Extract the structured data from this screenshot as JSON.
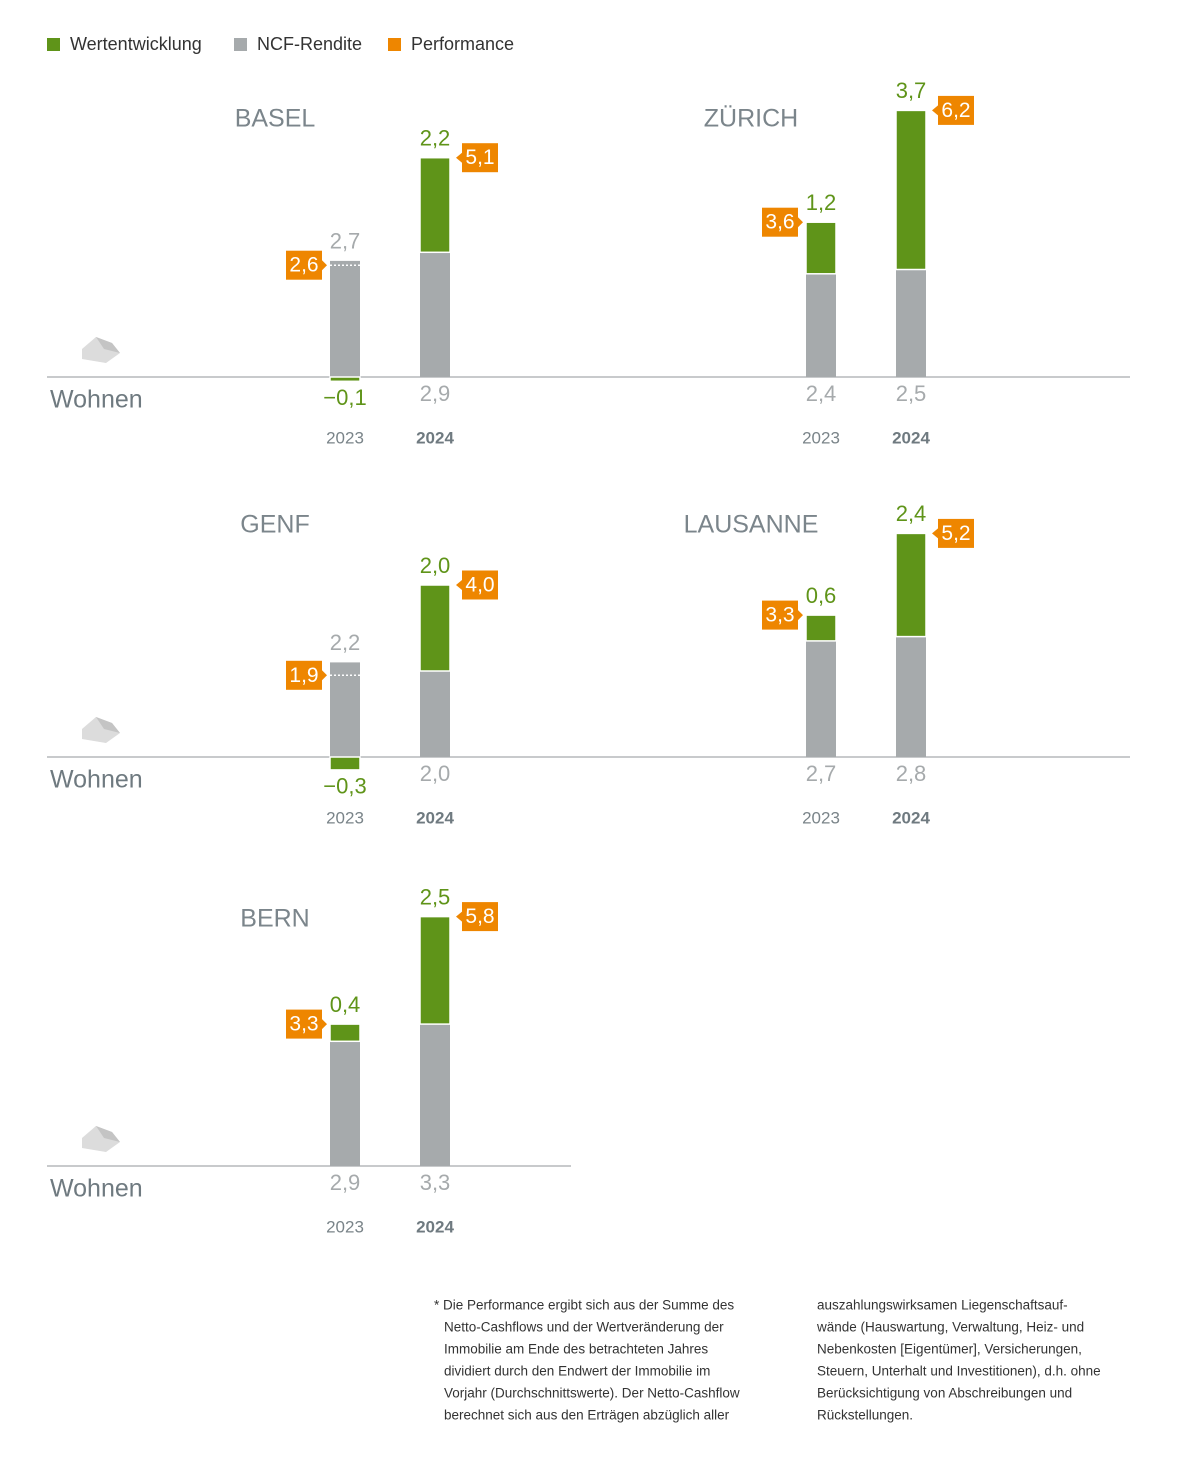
{
  "chart_data": {
    "type": "bar",
    "stacked": true,
    "series": [
      {
        "name": "Wertentwicklung",
        "color": "#5f9419"
      },
      {
        "name": "NCF-Rendite",
        "color": "#a6aaac"
      },
      {
        "name": "Performance",
        "color": "#ee8600"
      }
    ],
    "panels": [
      {
        "title": "BASEL",
        "row_label": "Wohnen",
        "categories": [
          "2023",
          "2024"
        ],
        "series": [
          {
            "values": [
              -0.1,
              2.2
            ],
            "value_labels": [
              "−0,1",
              "2,2"
            ]
          },
          {
            "values": [
              2.7,
              2.9
            ],
            "value_labels": [
              "2,7",
              "2,9"
            ]
          },
          {
            "values": [
              2.6,
              5.1
            ],
            "value_labels": [
              "2,6",
              "5,1"
            ]
          }
        ]
      },
      {
        "title": "ZÜRICH",
        "categories": [
          "2023",
          "2024"
        ],
        "series": [
          {
            "values": [
              1.2,
              3.7
            ],
            "value_labels": [
              "1,2",
              "3,7"
            ]
          },
          {
            "values": [
              2.4,
              2.5
            ],
            "value_labels": [
              "2,4",
              "2,5"
            ]
          },
          {
            "values": [
              3.6,
              6.2
            ],
            "value_labels": [
              "3,6",
              "6,2"
            ]
          }
        ]
      },
      {
        "title": "GENF",
        "row_label": "Wohnen",
        "categories": [
          "2023",
          "2024"
        ],
        "series": [
          {
            "values": [
              -0.3,
              2.0
            ],
            "value_labels": [
              "−0,3",
              "2,0"
            ]
          },
          {
            "values": [
              2.2,
              2.0
            ],
            "value_labels": [
              "2,2",
              "2,0"
            ]
          },
          {
            "values": [
              1.9,
              4.0
            ],
            "value_labels": [
              "1,9",
              "4,0"
            ]
          }
        ]
      },
      {
        "title": "LAUSANNE",
        "categories": [
          "2023",
          "2024"
        ],
        "series": [
          {
            "values": [
              0.6,
              2.4
            ],
            "value_labels": [
              "0,6",
              "2,4"
            ]
          },
          {
            "values": [
              2.7,
              2.8
            ],
            "value_labels": [
              "2,7",
              "2,8"
            ]
          },
          {
            "values": [
              3.3,
              5.2
            ],
            "value_labels": [
              "3,3",
              "5,2"
            ]
          }
        ]
      },
      {
        "title": "BERN",
        "row_label": "Wohnen",
        "categories": [
          "2023",
          "2024"
        ],
        "series": [
          {
            "values": [
              0.4,
              2.5
            ],
            "value_labels": [
              "0,4",
              "2,5"
            ]
          },
          {
            "values": [
              2.9,
              3.3
            ],
            "value_labels": [
              "2,9",
              "3,3"
            ]
          },
          {
            "values": [
              3.3,
              5.8
            ],
            "value_labels": [
              "3,3",
              "5,8"
            ]
          }
        ]
      }
    ]
  },
  "footnote": {
    "columns": [
      [
        "* Die Performance ergibt sich aus der Summe des",
        "Netto-Cashflows und der Wertveränderung der",
        "Immobilie am Ende des betrachteten Jahres",
        "dividiert durch den Endwert der Immobilie im",
        "Vorjahr (Durchschnittswerte). Der Netto-Cashflow",
        "berechnet sich aus den Erträgen abzüglich aller"
      ],
      [
        "auszahlungswirksamen Liegenschaftsauf-",
        "wände (Hauswartung, Verwaltung, Heiz- und",
        "Nebenkosten [Eigentümer], Versicherungen,",
        "Steuern, Unterhalt und Investitionen), d.h. ohne",
        "Berücksichtigung von Abschreibungen und",
        "Rückstellungen."
      ]
    ]
  }
}
